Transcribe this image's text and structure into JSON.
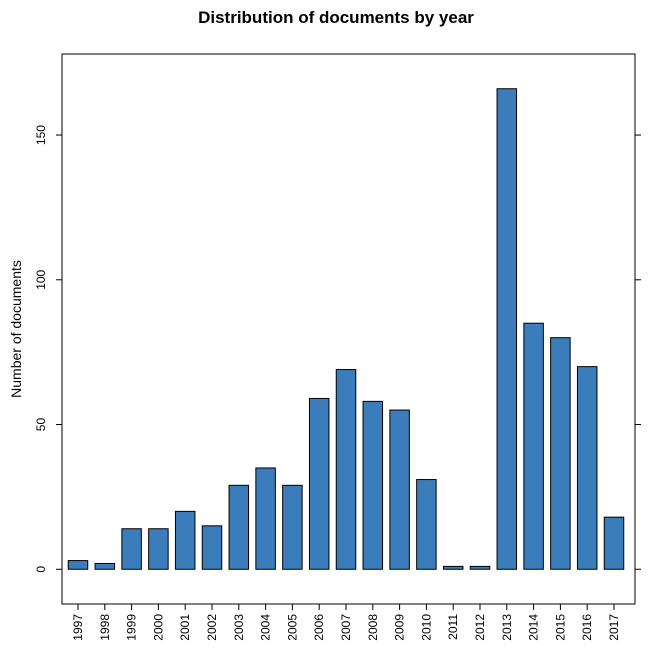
{
  "colors": {
    "bar_fill": "#3b7dba",
    "bar_stroke": "#000000",
    "axis": "#000000",
    "background": "#ffffff"
  },
  "chart_data": {
    "type": "bar",
    "title": "Distribution of documents by year",
    "xlabel": "",
    "ylabel": "Number of documents",
    "categories": [
      "1997",
      "1998",
      "1999",
      "2000",
      "2001",
      "2002",
      "2003",
      "2004",
      "2005",
      "2006",
      "2007",
      "2008",
      "2009",
      "2010",
      "2011",
      "2012",
      "2013",
      "2014",
      "2015",
      "2016",
      "2017"
    ],
    "values": [
      3,
      2,
      14,
      14,
      20,
      15,
      29,
      35,
      29,
      59,
      69,
      58,
      55,
      31,
      1,
      1,
      166,
      85,
      80,
      70,
      18
    ],
    "ylim": [
      -12,
      178
    ],
    "yticks": [
      0,
      50,
      100,
      150
    ],
    "grid": false,
    "legend": "none"
  }
}
